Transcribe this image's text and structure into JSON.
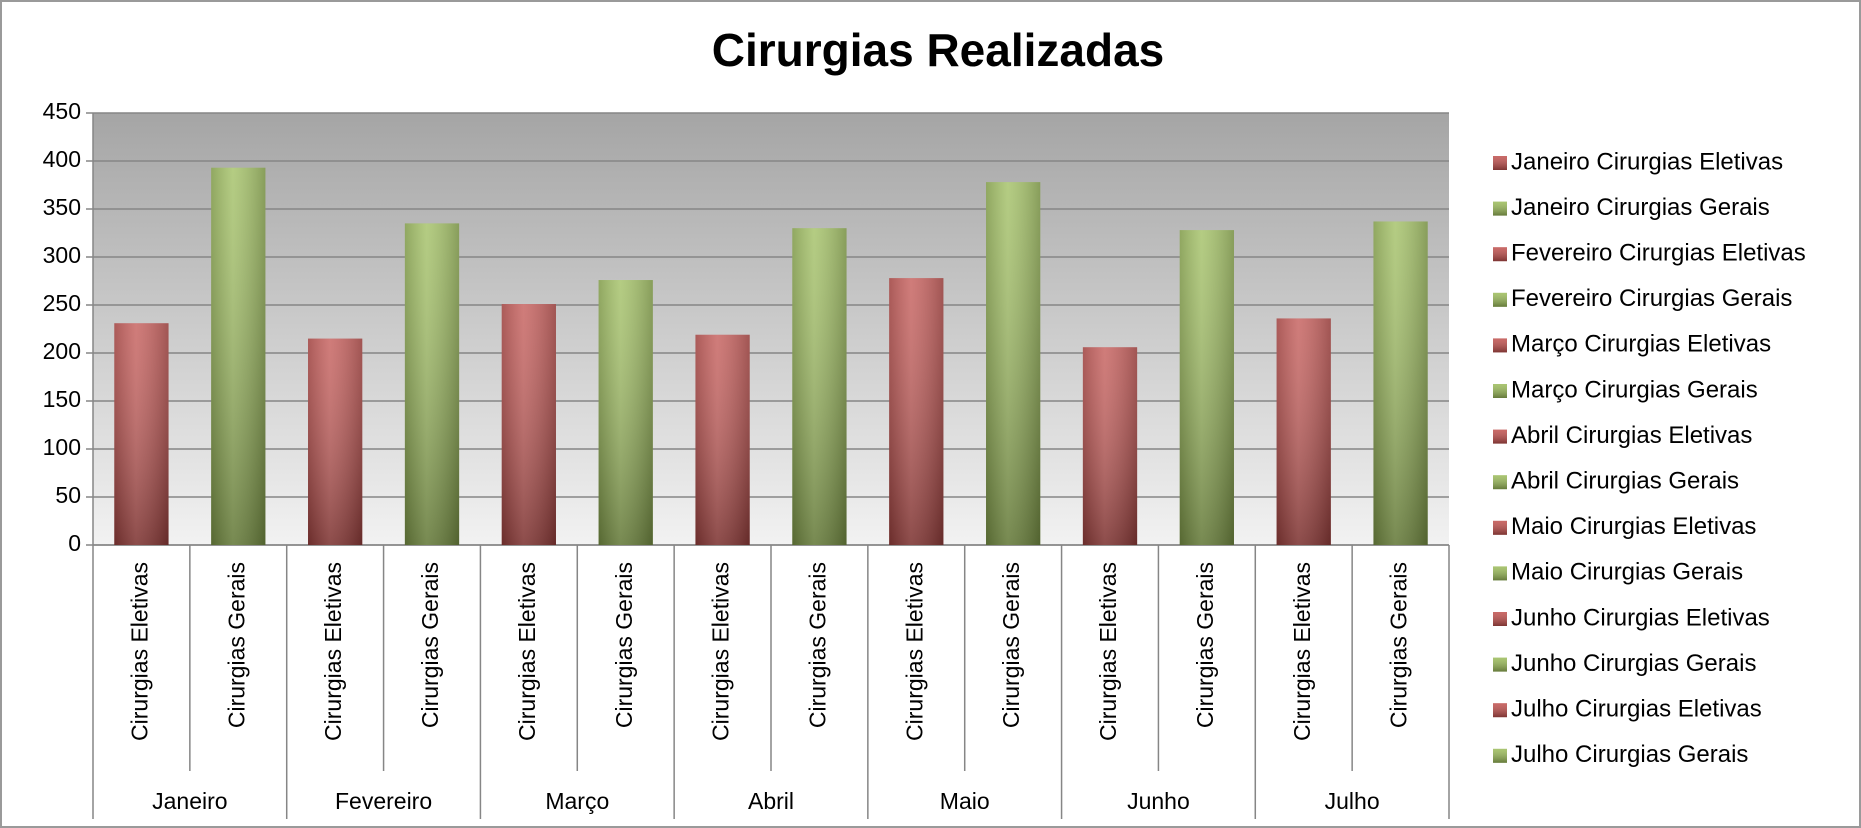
{
  "chart_data": {
    "type": "bar",
    "title": "Cirurgias Realizadas",
    "groups": [
      "Janeiro",
      "Fevereiro",
      "Março",
      "Abril",
      "Maio",
      "Junho",
      "Julho"
    ],
    "categories": [
      "Cirurgias Eletivas",
      "Cirurgias Gerais",
      "Cirurgias Eletivas",
      "Cirurgias Gerais",
      "Cirurgias Eletivas",
      "Cirurgias Gerais",
      "Cirurgias Eletivas",
      "Cirurgias Gerais",
      "Cirurgias Eletivas",
      "Cirurgias Gerais",
      "Cirurgias Eletivas",
      "Cirurgias Gerais",
      "Cirurgias Eletivas",
      "Cirurgias Gerais"
    ],
    "values": [
      231,
      393,
      215,
      335,
      251,
      276,
      219,
      330,
      278,
      378,
      206,
      328,
      236,
      337
    ],
    "colors": [
      "#c0504d",
      "#9bbb59",
      "#c0504d",
      "#9bbb59",
      "#c0504d",
      "#9bbb59",
      "#c0504d",
      "#9bbb59",
      "#c0504d",
      "#9bbb59",
      "#c0504d",
      "#9bbb59",
      "#c0504d",
      "#9bbb59"
    ],
    "legend": [
      "Janeiro Cirurgias Eletivas",
      "Janeiro Cirurgias Gerais",
      "Fevereiro Cirurgias Eletivas",
      "Fevereiro Cirurgias Gerais",
      "Março Cirurgias Eletivas",
      "Março Cirurgias Gerais",
      "Abril Cirurgias Eletivas",
      "Abril Cirurgias Gerais",
      "Maio Cirurgias Eletivas",
      "Maio Cirurgias Gerais",
      "Junho Cirurgias Eletivas",
      "Junho Cirurgias Gerais",
      "Julho Cirurgias Eletivas",
      "Julho Cirurgias Gerais"
    ],
    "ylim": [
      0,
      450
    ],
    "yticks": [
      0,
      50,
      100,
      150,
      200,
      250,
      300,
      350,
      400,
      450
    ],
    "grid": true
  }
}
